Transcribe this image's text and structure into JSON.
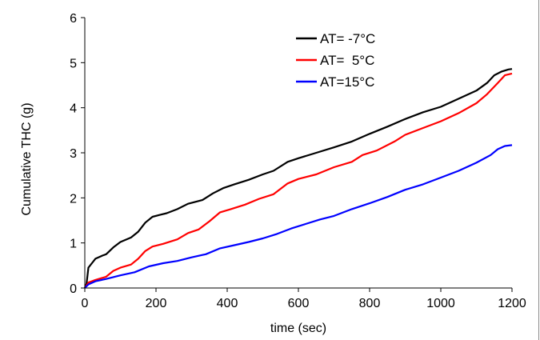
{
  "chart_data": {
    "type": "line",
    "xlabel": "time (sec)",
    "ylabel": "Cumulative THC (g)",
    "xlim": [
      0,
      1200
    ],
    "ylim": [
      0,
      6
    ],
    "xticks": [
      "0",
      "200",
      "400",
      "600",
      "800",
      "1000",
      "1200"
    ],
    "yticks": [
      "0",
      "1",
      "2",
      "3",
      "4",
      "5",
      "6"
    ],
    "grid": false,
    "legend_position": "top-right",
    "series": [
      {
        "name": "AT= -7°C",
        "color": "#000000",
        "points": [
          [
            0,
            0
          ],
          [
            5,
            0.1
          ],
          [
            10,
            0.45
          ],
          [
            20,
            0.55
          ],
          [
            30,
            0.65
          ],
          [
            50,
            0.72
          ],
          [
            60,
            0.75
          ],
          [
            80,
            0.9
          ],
          [
            100,
            1.02
          ],
          [
            130,
            1.12
          ],
          [
            150,
            1.25
          ],
          [
            170,
            1.45
          ],
          [
            190,
            1.58
          ],
          [
            210,
            1.62
          ],
          [
            230,
            1.66
          ],
          [
            260,
            1.75
          ],
          [
            290,
            1.87
          ],
          [
            330,
            1.95
          ],
          [
            360,
            2.1
          ],
          [
            390,
            2.22
          ],
          [
            420,
            2.3
          ],
          [
            460,
            2.4
          ],
          [
            500,
            2.52
          ],
          [
            530,
            2.6
          ],
          [
            570,
            2.8
          ],
          [
            600,
            2.88
          ],
          [
            650,
            3.0
          ],
          [
            700,
            3.12
          ],
          [
            750,
            3.25
          ],
          [
            800,
            3.42
          ],
          [
            850,
            3.58
          ],
          [
            900,
            3.75
          ],
          [
            950,
            3.9
          ],
          [
            1000,
            4.02
          ],
          [
            1050,
            4.2
          ],
          [
            1100,
            4.38
          ],
          [
            1130,
            4.55
          ],
          [
            1150,
            4.72
          ],
          [
            1170,
            4.8
          ],
          [
            1190,
            4.85
          ],
          [
            1200,
            4.86
          ]
        ]
      },
      {
        "name": "AT=  5°C",
        "color": "#ff0000",
        "points": [
          [
            0,
            0
          ],
          [
            10,
            0.12
          ],
          [
            30,
            0.18
          ],
          [
            60,
            0.25
          ],
          [
            80,
            0.38
          ],
          [
            100,
            0.45
          ],
          [
            130,
            0.52
          ],
          [
            150,
            0.65
          ],
          [
            170,
            0.82
          ],
          [
            190,
            0.92
          ],
          [
            220,
            0.98
          ],
          [
            260,
            1.08
          ],
          [
            290,
            1.22
          ],
          [
            320,
            1.3
          ],
          [
            350,
            1.48
          ],
          [
            380,
            1.68
          ],
          [
            410,
            1.75
          ],
          [
            450,
            1.85
          ],
          [
            490,
            1.98
          ],
          [
            530,
            2.08
          ],
          [
            570,
            2.32
          ],
          [
            600,
            2.42
          ],
          [
            650,
            2.52
          ],
          [
            700,
            2.68
          ],
          [
            750,
            2.8
          ],
          [
            780,
            2.95
          ],
          [
            820,
            3.05
          ],
          [
            870,
            3.25
          ],
          [
            900,
            3.4
          ],
          [
            950,
            3.55
          ],
          [
            1000,
            3.7
          ],
          [
            1050,
            3.88
          ],
          [
            1100,
            4.1
          ],
          [
            1130,
            4.3
          ],
          [
            1160,
            4.55
          ],
          [
            1180,
            4.72
          ],
          [
            1200,
            4.76
          ]
        ]
      },
      {
        "name": "AT=15°C",
        "color": "#0000ff",
        "points": [
          [
            0,
            0
          ],
          [
            10,
            0.08
          ],
          [
            30,
            0.15
          ],
          [
            60,
            0.2
          ],
          [
            100,
            0.28
          ],
          [
            140,
            0.35
          ],
          [
            180,
            0.48
          ],
          [
            220,
            0.55
          ],
          [
            260,
            0.6
          ],
          [
            300,
            0.68
          ],
          [
            340,
            0.75
          ],
          [
            380,
            0.88
          ],
          [
            420,
            0.95
          ],
          [
            460,
            1.02
          ],
          [
            500,
            1.1
          ],
          [
            540,
            1.2
          ],
          [
            580,
            1.32
          ],
          [
            620,
            1.42
          ],
          [
            660,
            1.52
          ],
          [
            700,
            1.6
          ],
          [
            750,
            1.75
          ],
          [
            800,
            1.88
          ],
          [
            850,
            2.02
          ],
          [
            900,
            2.18
          ],
          [
            950,
            2.3
          ],
          [
            1000,
            2.45
          ],
          [
            1050,
            2.6
          ],
          [
            1100,
            2.78
          ],
          [
            1140,
            2.95
          ],
          [
            1160,
            3.08
          ],
          [
            1180,
            3.15
          ],
          [
            1200,
            3.17
          ]
        ]
      }
    ]
  }
}
